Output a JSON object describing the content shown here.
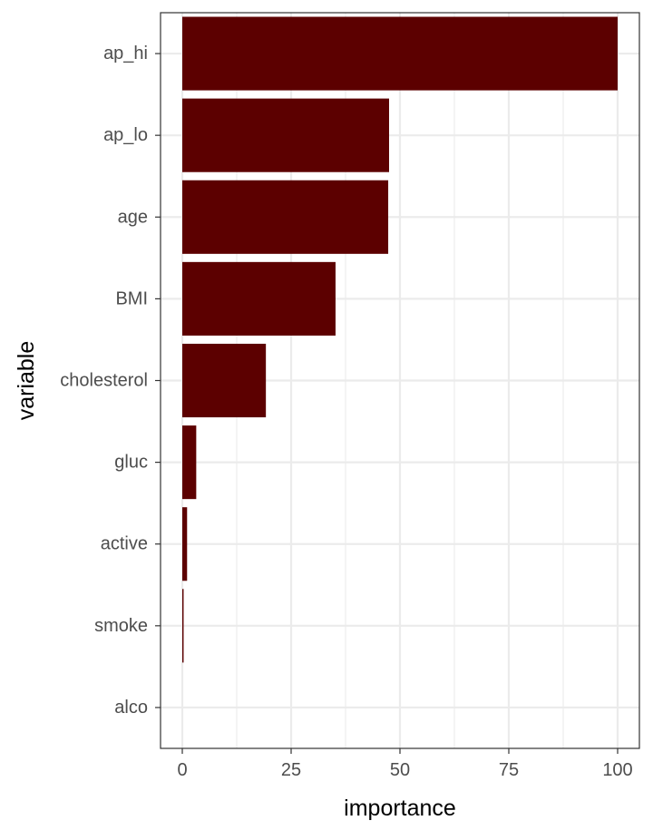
{
  "chart_data": {
    "type": "bar",
    "orientation": "horizontal",
    "title": "",
    "xlabel": "importance",
    "ylabel": "variable",
    "categories": [
      "ap_hi",
      "ap_lo",
      "age",
      "BMI",
      "cholesterol",
      "gluc",
      "active",
      "smoke",
      "alco"
    ],
    "values": [
      100,
      47.5,
      47.3,
      35.2,
      19.2,
      3.2,
      1.1,
      0.3,
      0
    ],
    "xlim": [
      -5,
      105
    ],
    "xticks": [
      0,
      25,
      50,
      75,
      100
    ],
    "grid": true,
    "bar_color": "#5c0000",
    "grid_color": "#ebebeb",
    "border_color": "#333333",
    "tick_label_color": "#4d4d4d",
    "axis_title_color": "#000000"
  }
}
